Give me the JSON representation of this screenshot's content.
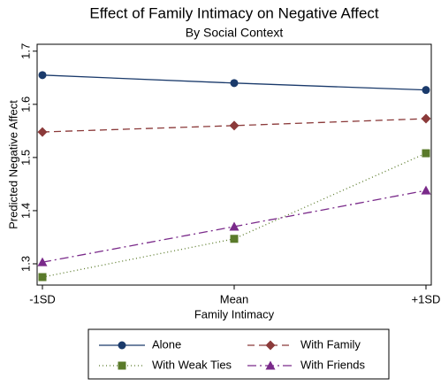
{
  "chart_data": {
    "type": "line",
    "title": "Effect of Family Intimacy on Negative Affect",
    "subtitle": "By Social Context",
    "x_label": "Family Intimacy",
    "y_label": "Predicted Negative Affect",
    "categories": [
      "-1SD",
      "Mean",
      "+1SD"
    ],
    "series": [
      {
        "name": "Alone",
        "color": "#1a3a6b",
        "marker": "circle",
        "line_style": "solid",
        "values": [
          1.655,
          1.64,
          1.627
        ]
      },
      {
        "name": "With Family",
        "color": "#8b3a3a",
        "marker": "diamond",
        "line_style": "dash",
        "values": [
          1.548,
          1.56,
          1.573
        ]
      },
      {
        "name": "With Weak Ties",
        "color": "#5a7a2a",
        "marker": "square",
        "line_style": "dot",
        "values": [
          1.275,
          1.347,
          1.508
        ]
      },
      {
        "name": "With Friends",
        "color": "#7a2a8a",
        "marker": "triangle",
        "line_style": "dashdot",
        "values": [
          1.303,
          1.37,
          1.438
        ]
      }
    ],
    "ylim": [
      1.26,
      1.713
    ],
    "yticks": [
      1.3,
      1.4,
      1.5,
      1.6,
      1.7
    ],
    "grid": false,
    "legend": "bottom"
  }
}
